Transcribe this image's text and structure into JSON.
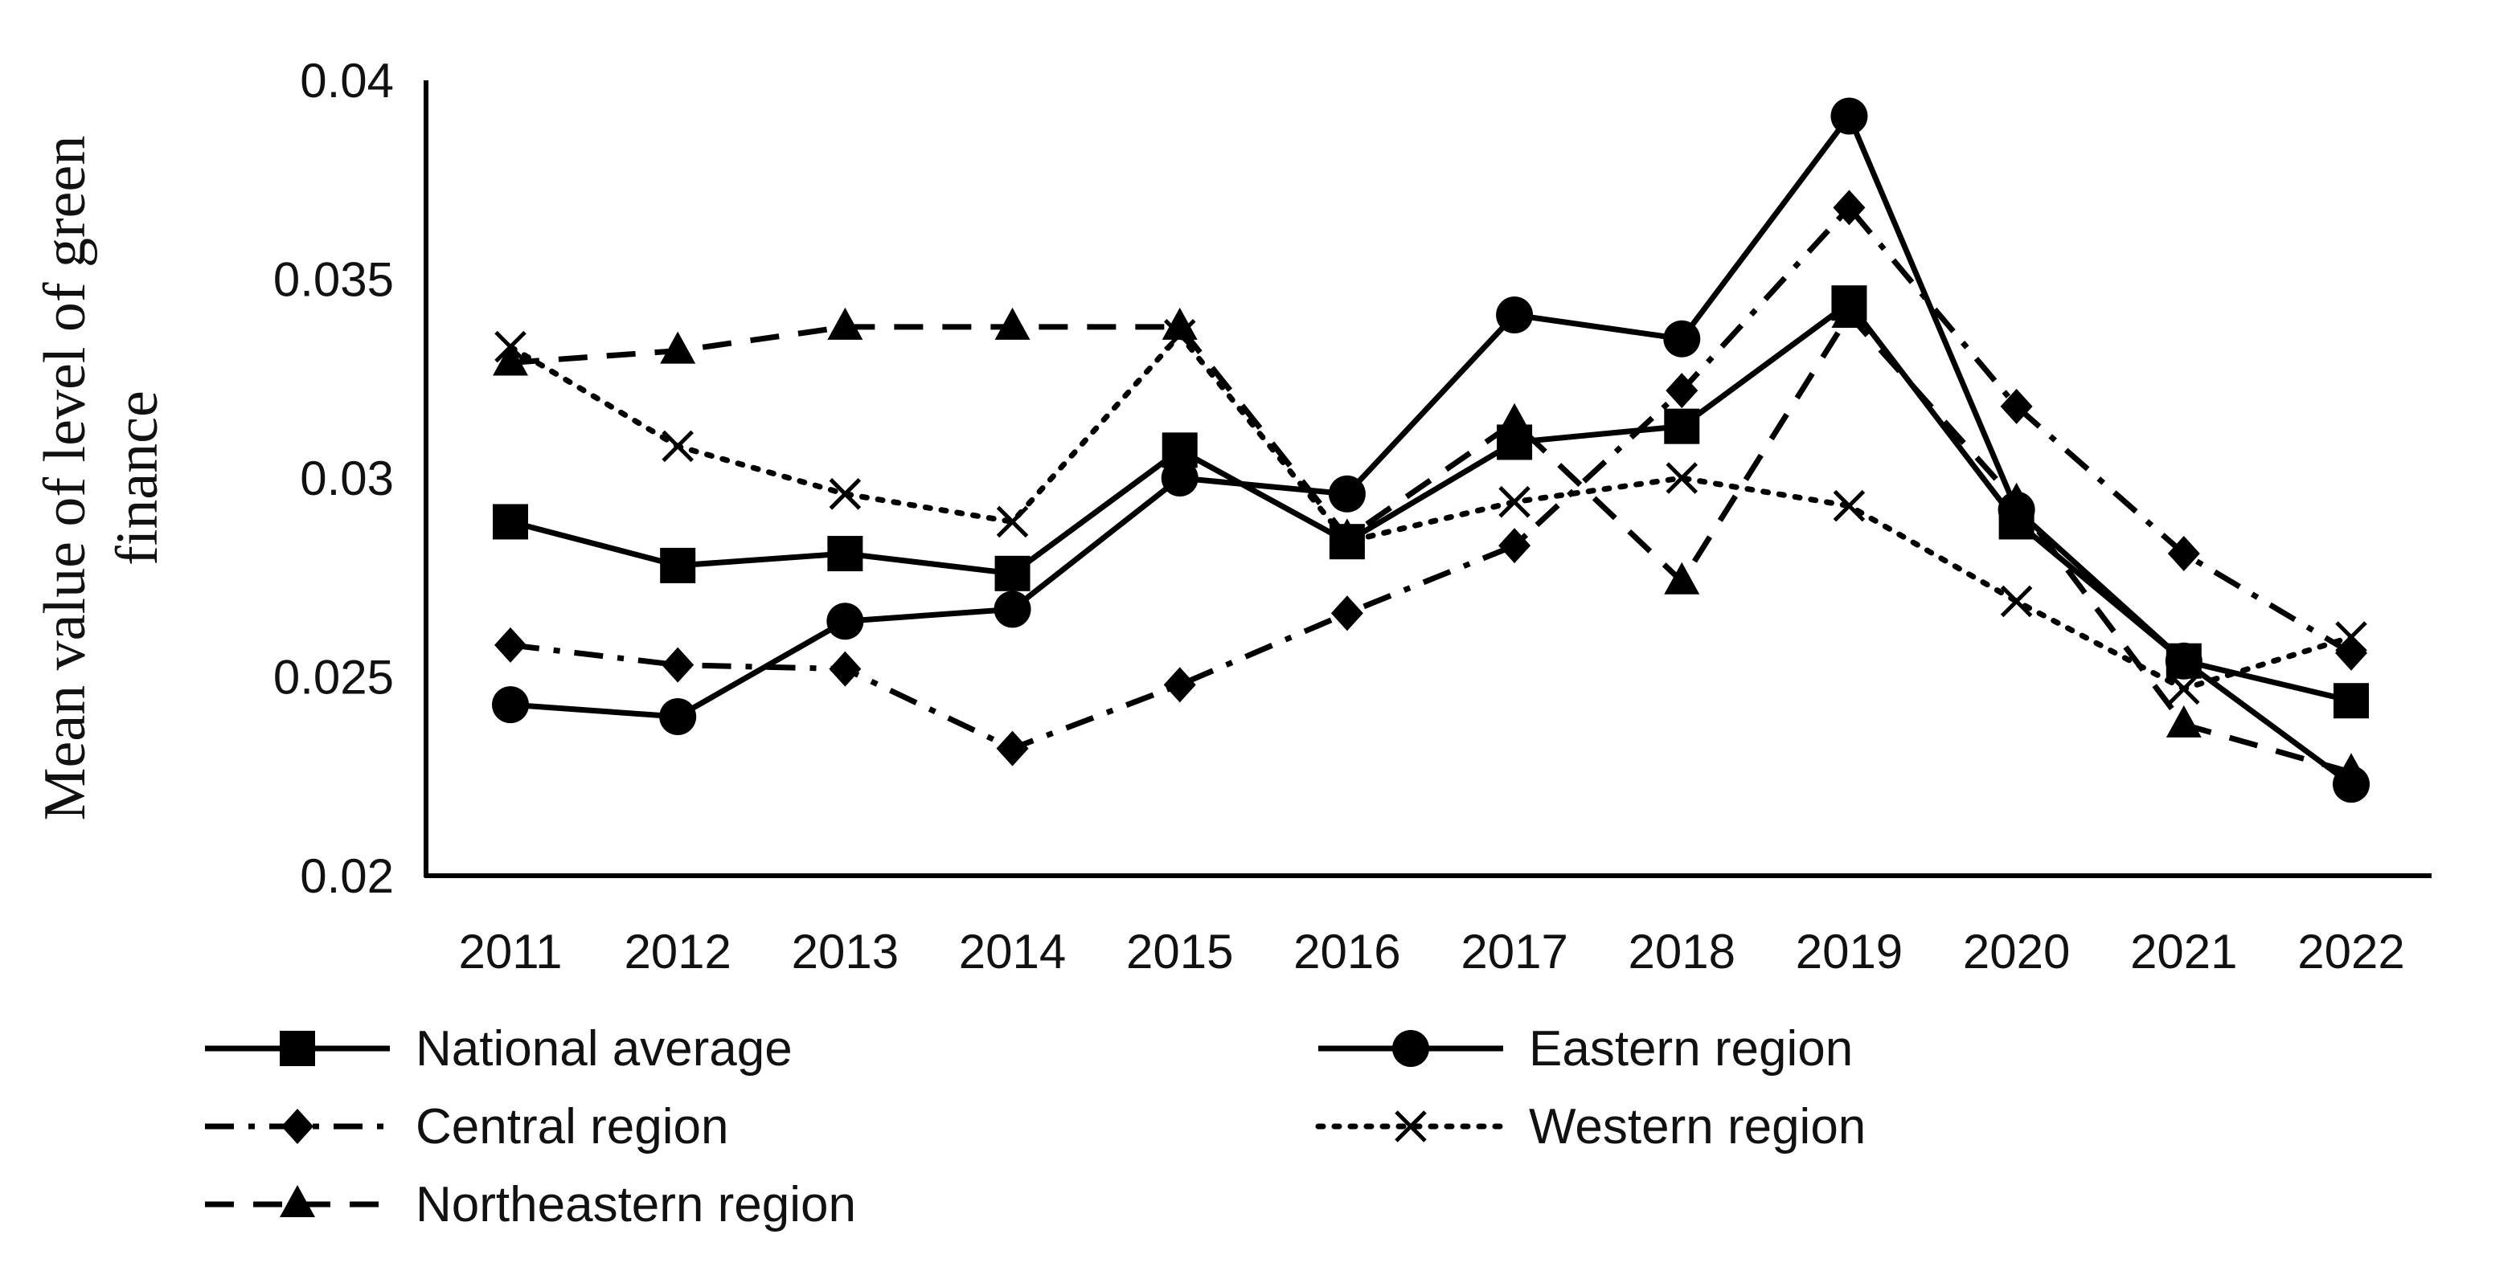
{
  "chart_data": {
    "type": "line",
    "title": "",
    "xlabel": "",
    "ylabel_lines": [
      "Mean value of level of green",
      "finance"
    ],
    "categories": [
      "2011",
      "2012",
      "2013",
      "2014",
      "2015",
      "2016",
      "2017",
      "2018",
      "2019",
      "2020",
      "2021",
      "2022"
    ],
    "ylim": [
      0.02,
      0.04
    ],
    "yticks": [
      {
        "value": 0.02,
        "label": "0.02"
      },
      {
        "value": 0.025,
        "label": "0.025"
      },
      {
        "value": 0.03,
        "label": "0.03"
      },
      {
        "value": 0.035,
        "label": "0.035"
      },
      {
        "value": 0.04,
        "label": "0.04"
      }
    ],
    "grid": false,
    "legend_position": "bottom",
    "series": [
      {
        "name": "National average",
        "dash": "solid",
        "marker": "square",
        "color": "#000000",
        "values": [
          0.0289,
          0.0278,
          0.0281,
          0.0276,
          0.0307,
          0.0284,
          0.0309,
          0.0313,
          0.0344,
          0.0289,
          0.0254,
          0.0244
        ]
      },
      {
        "name": "Eastern region",
        "dash": "solid",
        "marker": "circle",
        "color": "#000000",
        "values": [
          0.0243,
          0.024,
          0.0264,
          0.0267,
          0.03,
          0.0296,
          0.0341,
          0.0335,
          0.0391,
          0.0292,
          0.0254,
          0.0223
        ]
      },
      {
        "name": "Central region",
        "dash": "dashdot",
        "marker": "diamond",
        "color": "#000000",
        "values": [
          0.0258,
          0.0253,
          0.0252,
          0.0232,
          0.0248,
          0.0266,
          0.0283,
          0.0322,
          0.0368,
          0.0318,
          0.0281,
          0.0256
        ]
      },
      {
        "name": "Western region",
        "dash": "dotted",
        "marker": "x",
        "color": "#000000",
        "values": [
          0.0333,
          0.0308,
          0.0296,
          0.0289,
          0.0336,
          0.0284,
          0.0294,
          0.03,
          0.0293,
          0.0269,
          0.0247,
          0.026
        ]
      },
      {
        "name": "Northeastern region",
        "dash": "dashed",
        "marker": "triangle",
        "color": "#000000",
        "values": [
          0.0329,
          0.0332,
          0.0338,
          0.0338,
          0.0338,
          0.0285,
          0.0314,
          0.0274,
          0.0341,
          0.0294,
          0.0238,
          0.0226
        ]
      }
    ]
  }
}
